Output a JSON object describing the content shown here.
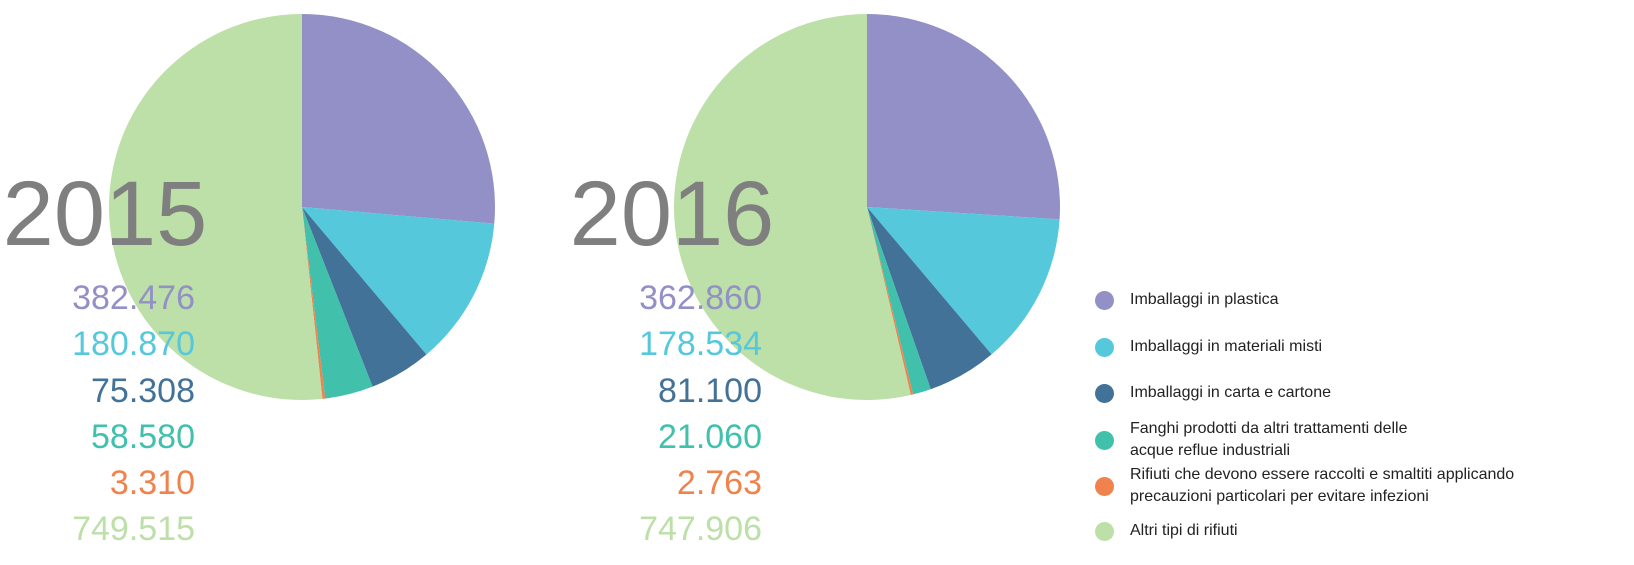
{
  "chart_data": [
    {
      "type": "pie",
      "title": "2015",
      "categories": [
        "Imballaggi in plastica",
        "Imballaggi in materiali misti",
        "Imballaggi in carta e cartone",
        "Fanghi prodotti da altri trattamenti delle\nacque reflue industriali",
        "Rifiuti che devono essere raccolti e smaltiti applicando\nprecauzioni particolari per evitare infezioni",
        "Altri tipi di rifiuti"
      ],
      "values": [
        382476,
        180870,
        75308,
        58580,
        3310,
        749515
      ],
      "value_labels": [
        "382.476",
        "180.870",
        "75.308",
        "58.580",
        "3.310",
        "749.515"
      ],
      "colors": [
        "#9290c7",
        "#56c8dc",
        "#437298",
        "#41c0ac",
        "#f0834d",
        "#bddfa8"
      ]
    },
    {
      "type": "pie",
      "title": "2016",
      "values": [
        362860,
        178534,
        81100,
        21060,
        2763,
        747906
      ],
      "value_labels": [
        "362.860",
        "178.534",
        "81.100",
        "21.060",
        "2.763",
        "747.906"
      ],
      "colors": [
        "#9290c7",
        "#56c8dc",
        "#437298",
        "#41c0ac",
        "#f0834d",
        "#bddfa8"
      ]
    }
  ]
}
